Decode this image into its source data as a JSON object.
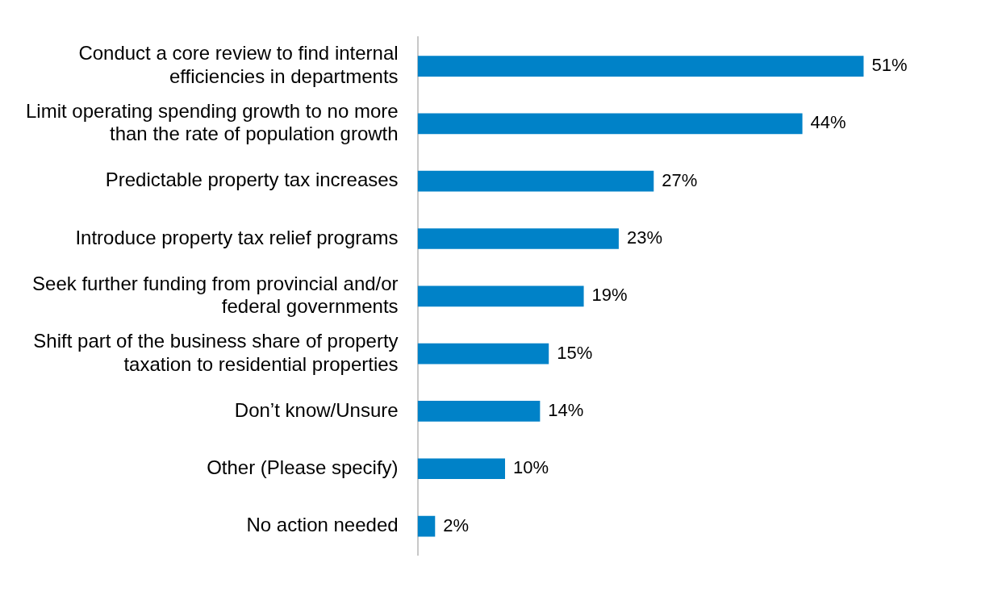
{
  "chart_data": {
    "type": "bar",
    "orientation": "horizontal",
    "categories": [
      "Conduct a core review to find internal efficiencies in departments",
      "Limit operating spending growth to no more than the rate of population growth",
      "Predictable property tax increases",
      "Introduce property tax relief programs",
      "Seek further funding from provincial and/or federal governments",
      "Shift part of the business share of property taxation to residential properties",
      "Don’t know/Unsure",
      "Other (Please specify)",
      "No action needed"
    ],
    "values": [
      51,
      44,
      27,
      23,
      19,
      15,
      14,
      10,
      2
    ],
    "value_labels": [
      "51%",
      "44%",
      "27%",
      "23%",
      "19%",
      "15%",
      "14%",
      "10%",
      "2%"
    ],
    "color": "#0082c8",
    "grid": false,
    "legend": false,
    "tick_labels": "y"
  }
}
